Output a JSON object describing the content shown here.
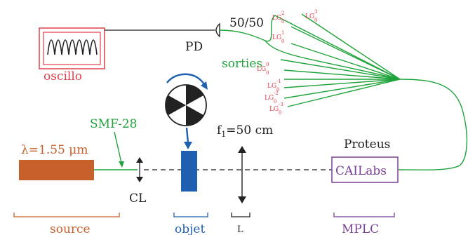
{
  "colors": {
    "red": "#e0404a",
    "green": "#1fa33a",
    "orange": "#c8602c",
    "blue": "#1f5fb0",
    "purple": "#7a3f96",
    "black": "#222222"
  },
  "labels": {
    "oscillo": "oscillo",
    "pd": "PD",
    "splitter": "50/50",
    "sorties": "sorties",
    "smf": "SMF-28",
    "lambda": "λ=1.55 μm",
    "cl": "CL",
    "focal_main": "f",
    "focal_sub": "1",
    "focal_rest": "=50 cm",
    "proteus": "Proteus",
    "cailabs": "CAILabs"
  },
  "modes": [
    {
      "base": "LG",
      "sub": "0",
      "sup": "3"
    },
    {
      "base": "LG",
      "sub": "0",
      "sup": "2"
    },
    {
      "base": "LG",
      "sub": "0",
      "sup": "1"
    },
    {
      "base": "LG",
      "sub": "0",
      "sup": "0"
    },
    {
      "base": "LG",
      "sub": "0",
      "sup": "-1"
    },
    {
      "base": "LG",
      "sub": "0",
      "sup": "-2"
    },
    {
      "base": "LG",
      "sub": "0",
      "sup": "-3"
    }
  ],
  "brackets": {
    "source": "source",
    "objet": "objet",
    "l": "L",
    "mplc": "MPLC"
  }
}
